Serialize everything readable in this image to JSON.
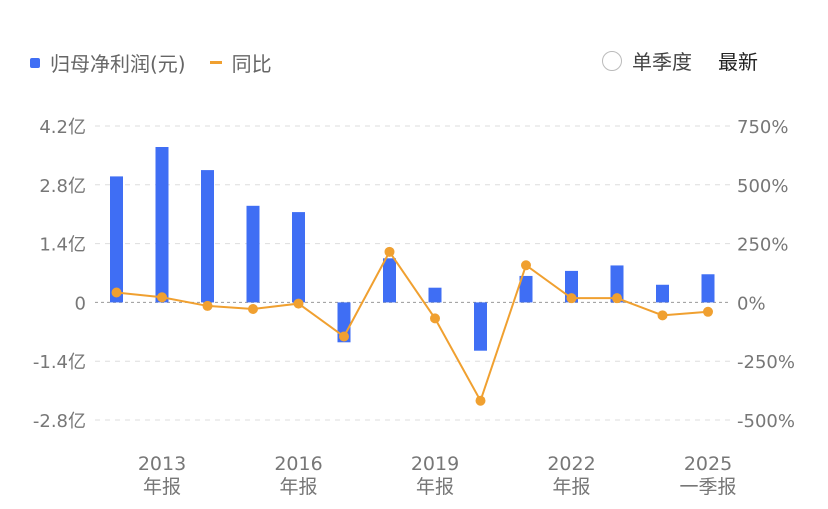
{
  "legend": {
    "bar_label": "归母净利润(元)",
    "line_label": "同比"
  },
  "controls": {
    "single_quarter": "单季度",
    "latest": "最新"
  },
  "colors": {
    "bar": "#3f6ef4",
    "line": "#f0a030",
    "grid": "#dddddd",
    "axis_text": "#777777"
  },
  "chart_data": {
    "type": "bar",
    "y_left_ticks": [
      "4.2亿",
      "2.8亿",
      "1.4亿",
      "0",
      "-1.4亿",
      "-2.8亿"
    ],
    "y_right_ticks": [
      "750%",
      "500%",
      "250%",
      "0%",
      "-250%",
      "-500%"
    ],
    "ylim_left": [
      -2.8,
      4.2
    ],
    "ylim_right": [
      -500,
      750
    ],
    "x_tick_labels": [
      {
        "index": 1,
        "year": "2013",
        "period": "年报"
      },
      {
        "index": 4,
        "year": "2016",
        "period": "年报"
      },
      {
        "index": 7,
        "year": "2019",
        "period": "年报"
      },
      {
        "index": 10,
        "year": "2022",
        "period": "年报"
      },
      {
        "index": 13,
        "year": "2025",
        "period": "一季报"
      }
    ],
    "series": [
      {
        "name": "归母净利润(元)",
        "unit": "亿",
        "values": [
          3.0,
          3.7,
          3.15,
          2.3,
          2.15,
          -0.95,
          1.05,
          0.35,
          -1.15,
          0.63,
          0.75,
          0.88,
          0.42,
          0.67
        ]
      },
      {
        "name": "同比",
        "unit": "%",
        "values": [
          42,
          22,
          -15,
          -28,
          -5,
          -145,
          215,
          -68,
          -418,
          158,
          18,
          18,
          -55,
          -40
        ]
      }
    ]
  }
}
